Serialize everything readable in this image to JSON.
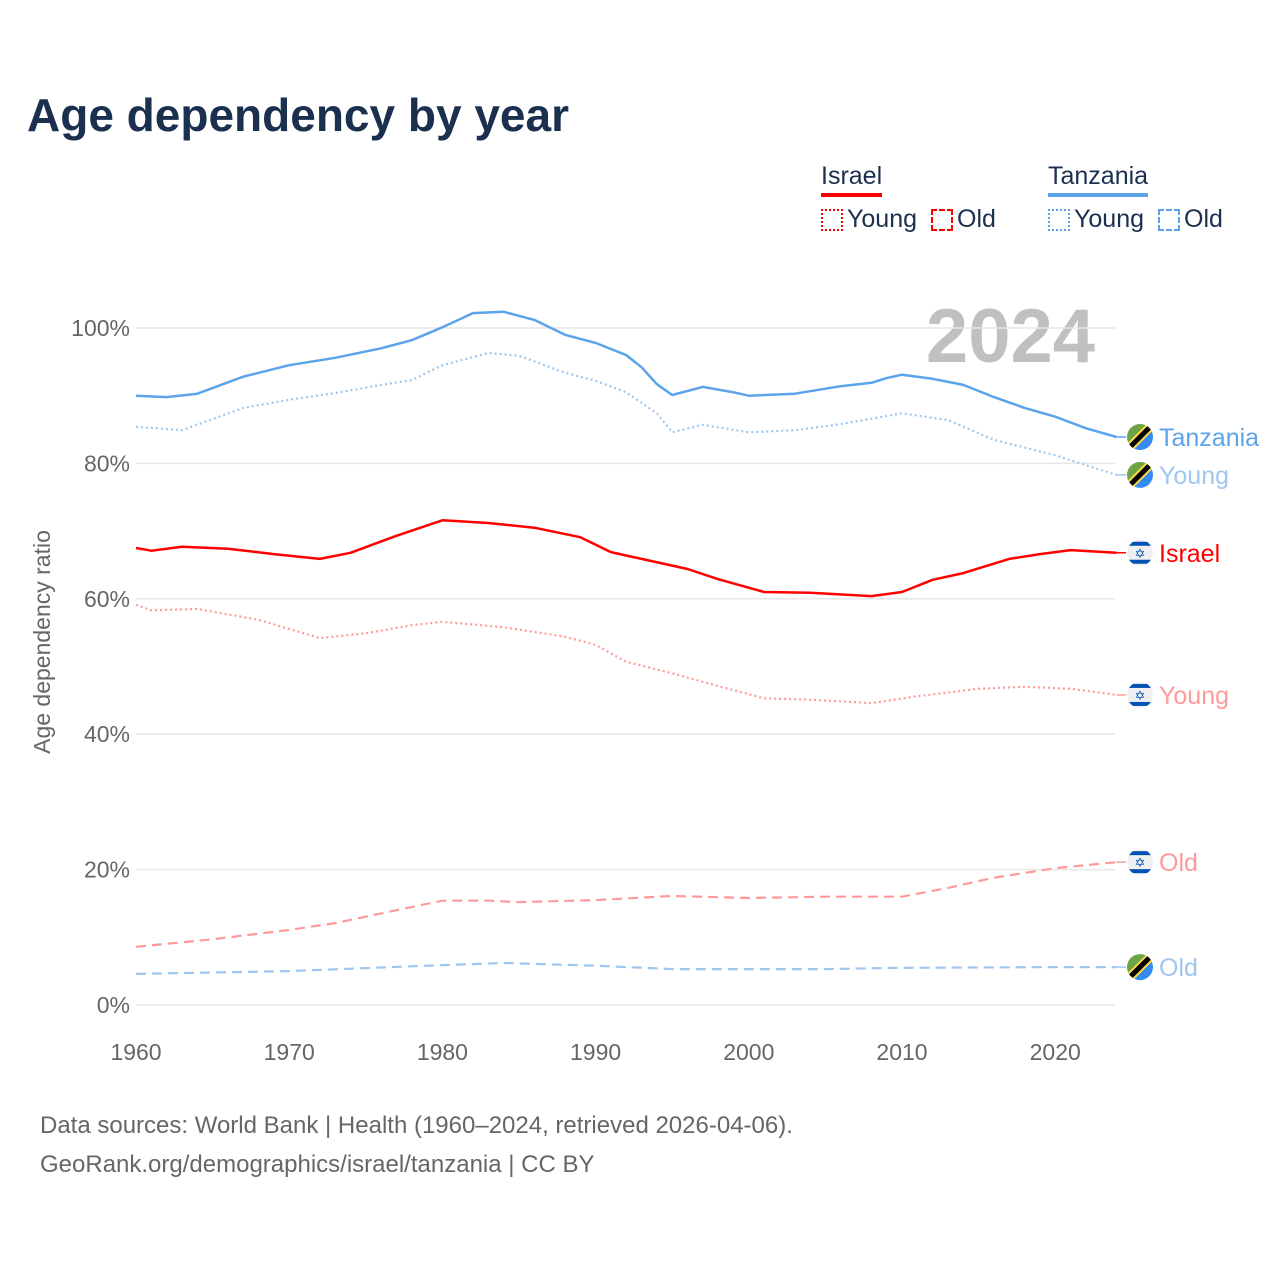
{
  "title": "Age dependency by year",
  "legend": {
    "groups": [
      {
        "country": "Israel",
        "color": "#ff0000",
        "light": "#ff9a9a",
        "items": [
          "Young",
          "Old"
        ]
      },
      {
        "country": "Tanzania",
        "color": "#5ba3ea",
        "light": "#9ec6f0",
        "items": [
          "Young",
          "Old"
        ]
      }
    ]
  },
  "chart_data": {
    "type": "line",
    "title": "Age dependency by year",
    "ylabel": "Age dependency ratio",
    "xlabel": "",
    "xlim": [
      1960,
      2024
    ],
    "ylim": [
      0,
      105
    ],
    "x_ticks": [
      "1960",
      "1970",
      "1980",
      "1990",
      "2000",
      "2010",
      "2020"
    ],
    "y_ticks": [
      "0%",
      "20%",
      "40%",
      "60%",
      "80%",
      "100%"
    ],
    "year_annotation": "2024",
    "grid": true,
    "series": [
      {
        "name": "Tanzania",
        "label": "Tanzania",
        "flag": "tanzania",
        "style": "solid",
        "color": "#5ba3ea",
        "points": [
          [
            1960,
            90.0
          ],
          [
            1962,
            89.8
          ],
          [
            1964,
            90.3
          ],
          [
            1967,
            92.8
          ],
          [
            1970,
            94.5
          ],
          [
            1973,
            95.6
          ],
          [
            1976,
            97.0
          ],
          [
            1978,
            98.2
          ],
          [
            1980,
            100.1
          ],
          [
            1982,
            102.2
          ],
          [
            1984,
            102.4
          ],
          [
            1986,
            101.2
          ],
          [
            1988,
            99.0
          ],
          [
            1990,
            97.8
          ],
          [
            1992,
            96.0
          ],
          [
            1993,
            94.2
          ],
          [
            1994,
            91.7
          ],
          [
            1995,
            90.1
          ],
          [
            1997,
            91.3
          ],
          [
            1999,
            90.5
          ],
          [
            2000,
            90.0
          ],
          [
            2003,
            90.3
          ],
          [
            2006,
            91.4
          ],
          [
            2008,
            91.9
          ],
          [
            2009,
            92.6
          ],
          [
            2010,
            93.1
          ],
          [
            2012,
            92.5
          ],
          [
            2014,
            91.6
          ],
          [
            2016,
            89.8
          ],
          [
            2018,
            88.2
          ],
          [
            2020,
            86.9
          ],
          [
            2022,
            85.2
          ],
          [
            2024,
            83.9
          ]
        ]
      },
      {
        "name": "Tanzania Young",
        "label": "Young",
        "flag": "tanzania",
        "style": "dotted",
        "color": "#9ec6f0",
        "points": [
          [
            1960,
            85.4
          ],
          [
            1963,
            84.9
          ],
          [
            1967,
            88.2
          ],
          [
            1970,
            89.4
          ],
          [
            1973,
            90.4
          ],
          [
            1976,
            91.6
          ],
          [
            1978,
            92.3
          ],
          [
            1980,
            94.5
          ],
          [
            1983,
            96.3
          ],
          [
            1985,
            95.9
          ],
          [
            1988,
            93.4
          ],
          [
            1990,
            92.2
          ],
          [
            1992,
            90.5
          ],
          [
            1994,
            87.4
          ],
          [
            1995,
            84.6
          ],
          [
            1997,
            85.7
          ],
          [
            2000,
            84.6
          ],
          [
            2003,
            84.9
          ],
          [
            2006,
            85.8
          ],
          [
            2010,
            87.4
          ],
          [
            2013,
            86.4
          ],
          [
            2016,
            83.5
          ],
          [
            2020,
            81.2
          ],
          [
            2024,
            78.3
          ]
        ]
      },
      {
        "name": "Israel",
        "label": "Israel",
        "flag": "israel",
        "style": "solid",
        "color": "#ff0000",
        "points": [
          [
            1960,
            67.5
          ],
          [
            1961,
            67.1
          ],
          [
            1963,
            67.7
          ],
          [
            1966,
            67.4
          ],
          [
            1969,
            66.6
          ],
          [
            1972,
            65.9
          ],
          [
            1974,
            66.8
          ],
          [
            1977,
            69.3
          ],
          [
            1980,
            71.6
          ],
          [
            1983,
            71.2
          ],
          [
            1986,
            70.5
          ],
          [
            1989,
            69.1
          ],
          [
            1991,
            66.9
          ],
          [
            1993,
            65.9
          ],
          [
            1996,
            64.4
          ],
          [
            1998,
            62.9
          ],
          [
            2001,
            61.0
          ],
          [
            2004,
            60.9
          ],
          [
            2008,
            60.4
          ],
          [
            2010,
            61.0
          ],
          [
            2012,
            62.8
          ],
          [
            2014,
            63.8
          ],
          [
            2017,
            65.9
          ],
          [
            2019,
            66.6
          ],
          [
            2021,
            67.2
          ],
          [
            2024,
            66.8
          ]
        ]
      },
      {
        "name": "Israel Young",
        "label": "Young",
        "flag": "israel",
        "style": "dotted",
        "color": "#ff9a9a",
        "points": [
          [
            1960,
            59.1
          ],
          [
            1961,
            58.3
          ],
          [
            1964,
            58.5
          ],
          [
            1968,
            56.9
          ],
          [
            1972,
            54.2
          ],
          [
            1975,
            54.9
          ],
          [
            1978,
            56.1
          ],
          [
            1980,
            56.6
          ],
          [
            1984,
            55.8
          ],
          [
            1988,
            54.4
          ],
          [
            1990,
            53.2
          ],
          [
            1992,
            50.7
          ],
          [
            1995,
            49.0
          ],
          [
            1998,
            47.1
          ],
          [
            2001,
            45.3
          ],
          [
            2004,
            45.1
          ],
          [
            2008,
            44.6
          ],
          [
            2011,
            45.6
          ],
          [
            2015,
            46.7
          ],
          [
            2018,
            47.0
          ],
          [
            2021,
            46.7
          ],
          [
            2024,
            45.8
          ]
        ]
      },
      {
        "name": "Israel Old",
        "label": "Old",
        "flag": "israel",
        "style": "dashed",
        "color": "#ff9a9a",
        "points": [
          [
            1960,
            8.6
          ],
          [
            1965,
            9.7
          ],
          [
            1970,
            11.1
          ],
          [
            1973,
            12.1
          ],
          [
            1977,
            14.0
          ],
          [
            1980,
            15.4
          ],
          [
            1983,
            15.4
          ],
          [
            1985,
            15.2
          ],
          [
            1990,
            15.5
          ],
          [
            1995,
            16.1
          ],
          [
            2000,
            15.8
          ],
          [
            2005,
            16.0
          ],
          [
            2010,
            16.0
          ],
          [
            2013,
            17.3
          ],
          [
            2016,
            18.8
          ],
          [
            2020,
            20.2
          ],
          [
            2024,
            21.1
          ]
        ]
      },
      {
        "name": "Tanzania Old",
        "label": "Old",
        "flag": "tanzania",
        "style": "dashed",
        "color": "#9ec6f0",
        "points": [
          [
            1960,
            4.6
          ],
          [
            1970,
            5.0
          ],
          [
            1980,
            5.9
          ],
          [
            1984,
            6.2
          ],
          [
            1990,
            5.8
          ],
          [
            1995,
            5.3
          ],
          [
            2005,
            5.3
          ],
          [
            2010,
            5.5
          ],
          [
            2020,
            5.6
          ],
          [
            2024,
            5.6
          ]
        ]
      }
    ]
  },
  "source": {
    "line1": "Data sources: World Bank | Health (1960–2024, retrieved 2026-04-06).",
    "line2": "GeoRank.org/demographics/israel/tanzania | CC BY"
  }
}
